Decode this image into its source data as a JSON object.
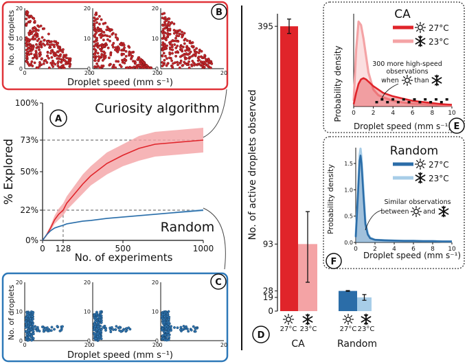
{
  "colors": {
    "ca": "#e0242a",
    "ca_light": "#f4a3a5",
    "ca_dark": "#9b1b1f",
    "rand": "#2b6da8",
    "rand_light": "#a7cde8",
    "rand_dark": "#1c4f78",
    "box_red": "#e03238",
    "box_blue": "#2d78b8"
  },
  "panel_b": {
    "letter": "B",
    "ylabel": "No. of droplets",
    "xlabel": "Droplet speed (mm s⁻¹)",
    "y_ticks": [
      "0",
      "10",
      "20"
    ],
    "x_ticks": [
      "0",
      "20"
    ]
  },
  "panel_c": {
    "letter": "C",
    "ylabel": "No. of droplets",
    "xlabel": "Droplet speed (mm s⁻¹)",
    "y_ticks": [
      "0",
      "10",
      "20"
    ],
    "x_ticks": [
      "0",
      "20"
    ]
  },
  "panel_a": {
    "letter": "A",
    "ylabel": "% Explored",
    "xlabel": "No. of experiments",
    "y_ticks": [
      "0%",
      "22%",
      "50%",
      "73%",
      "100%"
    ],
    "x_ticks": [
      "0",
      "128",
      "500",
      "1000"
    ],
    "label_ca": "Curiosity algorithm",
    "label_rand": "Random"
  },
  "panel_d": {
    "letter": "D",
    "ylabel": "No. of active droplets observed",
    "y_ticks": [
      "0",
      "19",
      "28",
      "93",
      "395"
    ],
    "group_ca": "CA",
    "group_rand": "Random",
    "temp_27": "27°C",
    "temp_23": "23°C"
  },
  "panel_e": {
    "letter": "E",
    "title": "CA",
    "ylabel": "Probability density",
    "xlabel": "Droplet speed (mm s⁻¹)",
    "x_ticks": [
      "0",
      "2",
      "4",
      "6",
      "8",
      "10"
    ],
    "legend": [
      "27°C",
      "23°C"
    ],
    "annot_1": "300 more high-speed",
    "annot_2": "observations",
    "annot_3a": "when",
    "annot_3b": "than"
  },
  "panel_f": {
    "letter": "F",
    "title": "Random",
    "ylabel": "Probability density",
    "xlabel": "Droplet speed (mm s⁻¹)",
    "x_ticks": [
      "0",
      "2",
      "4",
      "6",
      "8",
      "10"
    ],
    "y_ticks": [
      "0.0",
      "0.5",
      "1.0",
      "1.5"
    ],
    "legend": [
      "27°C",
      "23°C"
    ],
    "annot_1": "Similar observations",
    "annot_2a": "between",
    "annot_2b": "and"
  },
  "chart_data": [
    {
      "type": "line",
      "panel": "A",
      "xlabel": "No. of experiments",
      "ylabel": "% Explored",
      "xlim": [
        0,
        1000
      ],
      "ylim": [
        0,
        100
      ],
      "x": [
        0,
        25,
        50,
        75,
        100,
        128,
        150,
        200,
        250,
        300,
        400,
        500,
        600,
        700,
        800,
        900,
        1000
      ],
      "series": [
        {
          "name": "Curiosity algorithm",
          "values": [
            0,
            4,
            9,
            15,
            19,
            22,
            27,
            34,
            41,
            47,
            56,
            62,
            67,
            70,
            71,
            72,
            73
          ],
          "lower": [
            0,
            3,
            7,
            12,
            15,
            18,
            22,
            28,
            34,
            40,
            48,
            54,
            58,
            61,
            62,
            63,
            64
          ],
          "upper": [
            0,
            5,
            11,
            18,
            23,
            27,
            32,
            40,
            48,
            54,
            64,
            70,
            76,
            79,
            80,
            81,
            82
          ]
        },
        {
          "name": "Random",
          "values": [
            0,
            4,
            7,
            9,
            10,
            11,
            12,
            13,
            14,
            14.5,
            16,
            17,
            18,
            19,
            20,
            21,
            22
          ],
          "lower": [
            0,
            3.5,
            6.5,
            8.5,
            9.5,
            10.5,
            11.5,
            12.5,
            13.5,
            14,
            15.5,
            16.5,
            17.5,
            18.5,
            19.5,
            20.3,
            21.2
          ],
          "upper": [
            0,
            4.5,
            7.5,
            9.5,
            10.5,
            11.5,
            12.5,
            13.5,
            14.5,
            15,
            16.5,
            17.5,
            18.5,
            19.5,
            20.5,
            21.7,
            22.8
          ]
        }
      ],
      "reference_lines": {
        "y": [
          22,
          73
        ],
        "x": [
          128
        ]
      }
    },
    {
      "type": "bar",
      "panel": "D",
      "ylabel": "No. of active droplets observed",
      "categories": [
        "CA 27°C",
        "CA 23°C",
        "Random 27°C",
        "Random 23°C"
      ],
      "values": [
        395,
        93,
        28,
        19
      ],
      "error_low": [
        385,
        40,
        27.5,
        15
      ],
      "error_high": [
        405,
        138,
        28.5,
        23
      ],
      "ylim": [
        0,
        420
      ]
    },
    {
      "type": "line",
      "panel": "E",
      "title": "CA",
      "xlabel": "Droplet speed (mm s⁻¹)",
      "ylabel": "Probability density",
      "xlim": [
        0,
        10
      ],
      "x": [
        0,
        0.25,
        0.5,
        0.75,
        1,
        1.25,
        1.5,
        2,
        2.5,
        3,
        4,
        5,
        6,
        7,
        8,
        9,
        10
      ],
      "series": [
        {
          "name": "27°C",
          "values": [
            0.02,
            0.12,
            0.2,
            0.24,
            0.25,
            0.24,
            0.22,
            0.18,
            0.15,
            0.12,
            0.09,
            0.07,
            0.05,
            0.04,
            0.03,
            0.02,
            0.015
          ]
        },
        {
          "name": "23°C",
          "values": [
            0.05,
            0.5,
            0.75,
            0.72,
            0.6,
            0.45,
            0.3,
            0.15,
            0.1,
            0.08,
            0.05,
            0.035,
            0.025,
            0.02,
            0.015,
            0.01,
            0.008
          ]
        }
      ]
    },
    {
      "type": "line",
      "panel": "F",
      "title": "Random",
      "xlabel": "Droplet speed (mm s⁻¹)",
      "ylabel": "Probability density",
      "xlim": [
        0,
        10
      ],
      "ylim": [
        0,
        1.8
      ],
      "x": [
        0,
        0.2,
        0.4,
        0.5,
        0.6,
        0.8,
        1,
        1.25,
        1.5,
        2,
        3,
        4,
        5,
        6,
        7,
        8,
        9,
        10
      ],
      "series": [
        {
          "name": "27°C",
          "values": [
            0.1,
            0.8,
            1.55,
            1.65,
            1.5,
            0.9,
            0.35,
            0.15,
            0.08,
            0.05,
            0.04,
            0.035,
            0.03,
            0.03,
            0.025,
            0.025,
            0.02,
            0.02
          ]
        },
        {
          "name": "23°C",
          "values": [
            0.12,
            0.85,
            1.65,
            1.78,
            1.6,
            1.0,
            0.4,
            0.17,
            0.09,
            0.05,
            0.04,
            0.035,
            0.03,
            0.03,
            0.025,
            0.025,
            0.02,
            0.02
          ]
        }
      ]
    }
  ]
}
